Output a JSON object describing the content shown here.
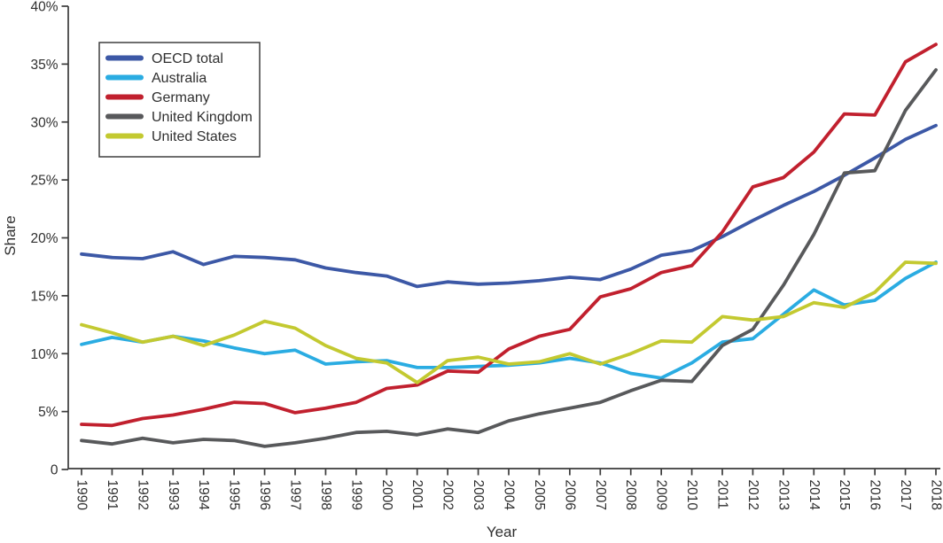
{
  "chart_data": {
    "type": "line",
    "title": "",
    "xlabel": "Year",
    "ylabel": "Share",
    "x": [
      1990,
      1991,
      1992,
      1993,
      1994,
      1995,
      1996,
      1997,
      1998,
      1999,
      2000,
      2001,
      2002,
      2003,
      2004,
      2005,
      2006,
      2007,
      2008,
      2009,
      2010,
      2011,
      2012,
      2013,
      2014,
      2015,
      2016,
      2017,
      2018
    ],
    "series": [
      {
        "name": "OECD total",
        "color": "#3C58A6",
        "values": [
          18.6,
          18.3,
          18.2,
          18.8,
          17.7,
          18.4,
          18.3,
          18.1,
          17.4,
          17.0,
          16.7,
          15.8,
          16.2,
          16.0,
          16.1,
          16.3,
          16.6,
          16.4,
          17.3,
          18.5,
          18.9,
          20.1,
          21.5,
          22.8,
          24.0,
          25.4,
          26.9,
          28.5,
          29.7
        ]
      },
      {
        "name": "Australia",
        "color": "#2AACE2",
        "values": [
          10.8,
          11.4,
          11.0,
          11.5,
          11.1,
          10.5,
          10.0,
          10.3,
          9.1,
          9.3,
          9.4,
          8.8,
          8.8,
          8.9,
          9.0,
          9.2,
          9.6,
          9.2,
          8.3,
          7.9,
          9.2,
          11.0,
          11.3,
          13.4,
          15.5,
          14.2,
          14.6,
          16.5,
          17.9
        ]
      },
      {
        "name": "Germany",
        "color": "#C1202E",
        "values": [
          3.9,
          3.8,
          4.4,
          4.7,
          5.2,
          5.8,
          5.7,
          4.9,
          5.3,
          5.8,
          7.0,
          7.3,
          8.5,
          8.4,
          10.4,
          11.5,
          12.1,
          14.9,
          15.6,
          17.0,
          17.6,
          20.5,
          24.4,
          25.2,
          27.4,
          30.7,
          30.6,
          35.2,
          36.7
        ]
      },
      {
        "name": "United Kingdom",
        "color": "#58595B",
        "values": [
          2.5,
          2.2,
          2.7,
          2.3,
          2.6,
          2.5,
          2.0,
          2.3,
          2.7,
          3.2,
          3.3,
          3.0,
          3.5,
          3.2,
          4.2,
          4.8,
          5.3,
          5.8,
          6.8,
          7.7,
          7.6,
          10.7,
          12.1,
          15.9,
          20.3,
          25.6,
          25.8,
          31.0,
          34.5
        ]
      },
      {
        "name": "United States",
        "color": "#C3C930",
        "values": [
          12.5,
          11.8,
          11.0,
          11.5,
          10.7,
          11.6,
          12.8,
          12.2,
          10.7,
          9.6,
          9.2,
          7.5,
          9.4,
          9.7,
          9.1,
          9.3,
          10.0,
          9.1,
          10.0,
          11.1,
          11.0,
          13.2,
          12.9,
          13.2,
          14.4,
          14.0,
          15.3,
          17.9,
          17.8
        ]
      }
    ],
    "ylim": [
      0,
      40
    ],
    "yticks": [
      0,
      5,
      10,
      15,
      20,
      25,
      30,
      35,
      40
    ],
    "ytick_labels": [
      "0",
      "5%",
      "10%",
      "15%",
      "20%",
      "25%",
      "30%",
      "35%",
      "40%"
    ],
    "legend_position": "top-left",
    "grid": false,
    "axis_color": "#3b3b3b",
    "text_color": "#2f2f2f"
  }
}
